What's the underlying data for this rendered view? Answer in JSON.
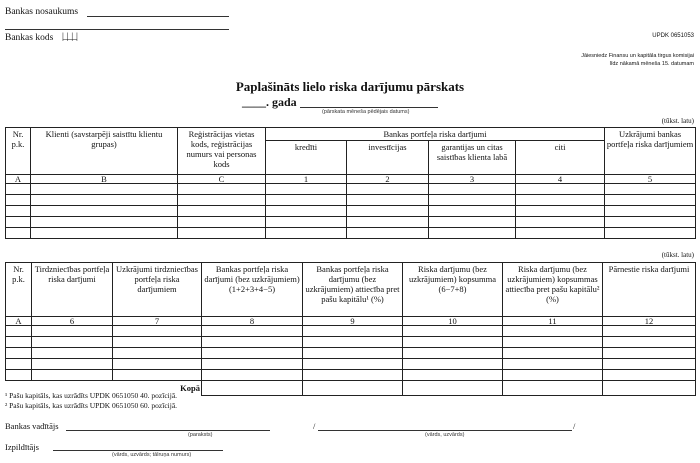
{
  "header": {
    "bank_name_label": "Bankas nosaukums",
    "bank_code_label": "Bankas kods",
    "bank_code_boxes": "|_|_|_|",
    "form_code": "UPDK 0651053",
    "submit_note_1": "Jāiesniedz Finansu un kapitāla tirgus komisijai",
    "submit_note_2": "līdz nākamā mēneša 15. datumam"
  },
  "title": {
    "main": "Paplašināts lielo riska darījumu pārskats",
    "year_line": "____. gada",
    "date_hint": "(pārskata mēneša pēdējais datums)"
  },
  "table1": {
    "unit": "(tūkst. latu)",
    "group_header": "Bankas portfeļa riska darījumi",
    "columns": [
      {
        "label": "Nr. p.k.",
        "code": "A"
      },
      {
        "label": "Klienti (savstarpēji saistītu klientu grupas)",
        "code": "B"
      },
      {
        "label": "Reģistrācijas vietas kods, reģistrācijas numurs vai personas kods",
        "code": "C"
      },
      {
        "label": "kredīti",
        "code": "1"
      },
      {
        "label": "investīcijas",
        "code": "2"
      },
      {
        "label": "garantijas un citas saistības klienta labā",
        "code": "3"
      },
      {
        "label": "citi",
        "code": "4"
      },
      {
        "label": "Uzkrājumi bankas portfeļa riska darījumiem",
        "code": "5"
      }
    ]
  },
  "table2": {
    "unit": "(tūkst. latu)",
    "total_label": "Kopā",
    "columns": [
      {
        "label": "Nr. p.k.",
        "code": "A"
      },
      {
        "label": "Tirdzniecības portfeļa riska darījumi",
        "code": "6"
      },
      {
        "label": "Uzkrājumi tirdzniecības portfeļa riska darījumiem",
        "code": "7"
      },
      {
        "label": "Bankas portfeļa riska darījumi (bez uzkrājumiem) (1+2+3+4−5)",
        "code": "8"
      },
      {
        "label": "Bankas portfeļa riska darījumu (bez uzkrājumiem) attiecība pret pašu kapitālu¹ (%)",
        "code": "9"
      },
      {
        "label": "Riska darījumu (bez uzkrājumiem) kopsumma (6−7+8)",
        "code": "10"
      },
      {
        "label": "Riska darījumu (bez uzkrājumiem) kopsummas attiecība pret pašu kapitālu² (%)",
        "code": "11"
      },
      {
        "label": "Pārnestie riska darījumi",
        "code": "12"
      }
    ]
  },
  "footnotes": [
    "¹ Pašu kapitāls, kas uzrādīts UPDK 0651050 40. pozīcijā.",
    "² Pašu kapitāls, kas uzrādīts UPDK 0651050 60. pozīcijā."
  ],
  "signatures": {
    "head_label": "Bankas vadītājs",
    "signature_hint": "(paraksts)",
    "name_hint": "(vārds, uzvārds)",
    "slash": "/",
    "executor_label": "Izpildītājs",
    "executor_hint": "(vārds, uzvārds; tālruņa numurs)"
  }
}
